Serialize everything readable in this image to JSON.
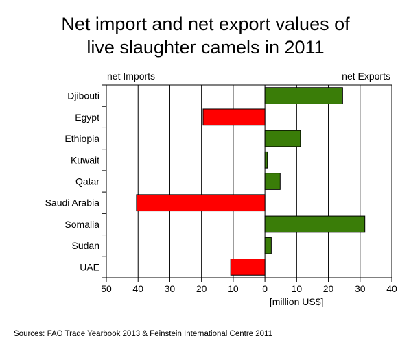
{
  "title_line1": "Net import and net export values of",
  "title_line2": "live slaughter camels in 2011",
  "left_header": "net Imports",
  "right_header": "net Exports",
  "source": "Sources: FAO Trade Yearbook 2013 & Feinstein International Centre 2011",
  "colors": {
    "import": "#ff0000",
    "export": "#3a7d08",
    "grid": "#000000"
  },
  "chart_data": {
    "type": "bar",
    "orientation": "horizontal",
    "title": "Net import and net export values of live slaughter camels in 2011",
    "xlabel": "[million US$]",
    "ylabel": "",
    "xlim": [
      -50,
      40
    ],
    "x_tick_labels": [
      "50",
      "40",
      "30",
      "20",
      "10",
      "0",
      "10",
      "20",
      "30",
      "40"
    ],
    "grid": "vertical",
    "categories": [
      "Djibouti",
      "Egypt",
      "Ethiopia",
      "Kuwait",
      "Qatar",
      "Saudi Arabia",
      "Somalia",
      "Sudan",
      "UAE"
    ],
    "values": [
      24.5,
      -19.5,
      11.2,
      0.8,
      4.8,
      -40.5,
      31.5,
      2.0,
      -10.8
    ]
  }
}
